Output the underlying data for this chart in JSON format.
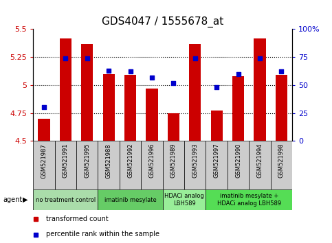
{
  "title": "GDS4047 / 1555678_at",
  "samples": [
    "GSM521987",
    "GSM521991",
    "GSM521995",
    "GSM521988",
    "GSM521992",
    "GSM521996",
    "GSM521989",
    "GSM521993",
    "GSM521997",
    "GSM521990",
    "GSM521994",
    "GSM521998"
  ],
  "bar_values": [
    4.7,
    5.42,
    5.37,
    5.1,
    5.09,
    4.97,
    4.75,
    5.37,
    4.77,
    5.08,
    5.42,
    5.09
  ],
  "dot_values": [
    30,
    74,
    74,
    63,
    62,
    57,
    52,
    74,
    48,
    60,
    74,
    62
  ],
  "bar_bottom": 4.5,
  "ylim_left": [
    4.5,
    5.5
  ],
  "ylim_right": [
    0,
    100
  ],
  "yticks_left": [
    4.5,
    4.75,
    5.0,
    5.25,
    5.5
  ],
  "yticks_left_labels": [
    "4.5",
    "4.75",
    "5",
    "5.25",
    "5.5"
  ],
  "yticks_right": [
    0,
    25,
    50,
    75,
    100
  ],
  "yticks_right_labels": [
    "0",
    "25",
    "50",
    "75",
    "100%"
  ],
  "hlines": [
    4.75,
    5.0,
    5.25
  ],
  "bar_color": "#CC0000",
  "dot_color": "#0000CC",
  "agent_groups": [
    {
      "label": "no treatment control",
      "start": 0,
      "end": 3,
      "color": "#AADDAA"
    },
    {
      "label": "imatinib mesylate",
      "start": 3,
      "end": 6,
      "color": "#66CC66"
    },
    {
      "label": "HDACi analog\nLBH589",
      "start": 6,
      "end": 8,
      "color": "#99EE99"
    },
    {
      "label": "imatinib mesylate +\nHDACi analog LBH589",
      "start": 8,
      "end": 12,
      "color": "#55DD55"
    }
  ],
  "sample_box_color": "#CCCCCC",
  "legend_bar_label": "transformed count",
  "legend_dot_label": "percentile rank within the sample",
  "agent_label": "agent",
  "title_fontsize": 11,
  "tick_fontsize": 8,
  "bar_width": 0.55
}
